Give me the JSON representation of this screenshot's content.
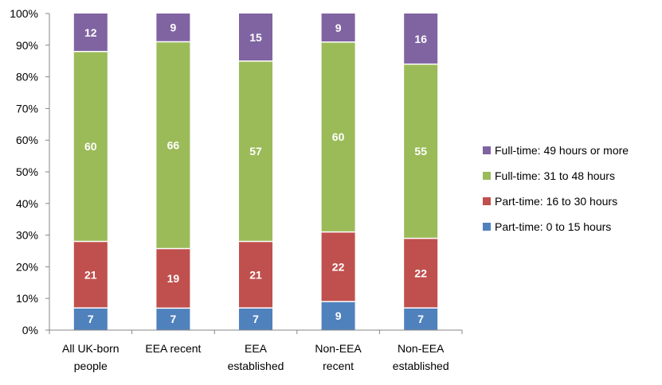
{
  "chart_data": {
    "type": "bar",
    "stacked": true,
    "percent_scale": true,
    "categories": [
      [
        "All UK-born",
        "people"
      ],
      [
        "EEA recent"
      ],
      [
        "EEA",
        "established"
      ],
      [
        "Non-EEA",
        "recent"
      ],
      [
        "Non-EEA",
        "established"
      ]
    ],
    "series": [
      {
        "name": "Part-time: 0 to 15 hours",
        "color": "#4f81bd",
        "values": [
          7,
          7,
          7,
          9,
          7
        ]
      },
      {
        "name": "Part-time: 16 to 30 hours",
        "color": "#c0504d",
        "values": [
          21,
          19,
          21,
          22,
          22
        ]
      },
      {
        "name": "Full-time: 31 to 48 hours",
        "color": "#9bbb59",
        "values": [
          60,
          66,
          57,
          60,
          55
        ]
      },
      {
        "name": "Full-time: 49 hours or more",
        "color": "#8064a2",
        "values": [
          12,
          9,
          15,
          9,
          16
        ]
      }
    ],
    "ylim": [
      0,
      100
    ],
    "yticks": [
      "0%",
      "10%",
      "20%",
      "30%",
      "40%",
      "50%",
      "60%",
      "70%",
      "80%",
      "90%",
      "100%"
    ],
    "title": "",
    "xlabel": "",
    "ylabel": "",
    "grid": false,
    "legend_position": "right"
  }
}
